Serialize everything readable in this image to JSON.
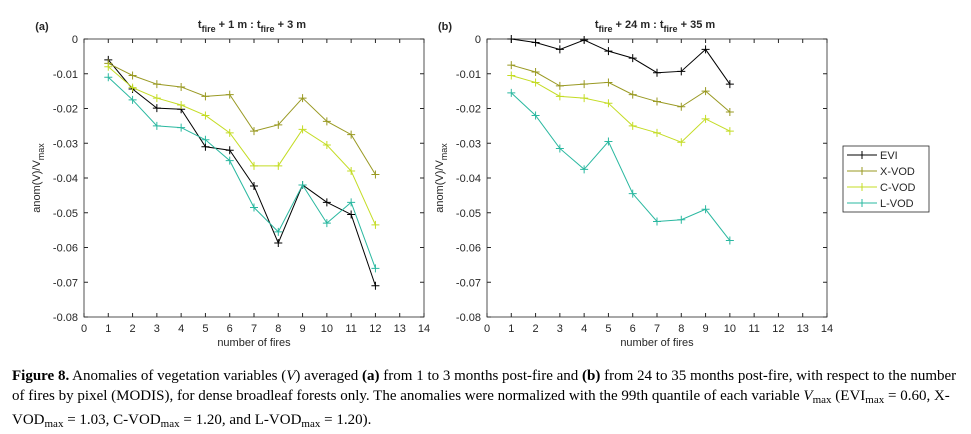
{
  "chart_data": [
    {
      "type": "line",
      "panel_label": "(a)",
      "title": [
        {
          "text": "t"
        },
        {
          "text": "fire",
          "style": "sub"
        },
        {
          "text": " + 1 m : t"
        },
        {
          "text": "fire",
          "style": "sub"
        },
        {
          "text": " + 3 m"
        }
      ],
      "xlabel": "number of fires",
      "ylabel": [
        {
          "text": "anom(V)/V"
        },
        {
          "text": "max",
          "style": "sub"
        }
      ],
      "x": [
        1,
        2,
        3,
        4,
        5,
        6,
        7,
        8,
        9,
        10,
        11,
        12
      ],
      "series": [
        {
          "color": "#000000",
          "values": [
            -0.006,
            -0.0144,
            -0.0199,
            -0.0202,
            -0.031,
            -0.032,
            -0.0423,
            -0.0587,
            -0.042,
            -0.047,
            -0.0505,
            -0.071
          ]
        },
        {
          "color": "#999922",
          "values": [
            -0.007,
            -0.0105,
            -0.013,
            -0.0138,
            -0.0165,
            -0.016,
            -0.0265,
            -0.0247,
            -0.017,
            -0.0237,
            -0.0275,
            -0.039
          ]
        },
        {
          "color": "#c4dc24",
          "values": [
            -0.008,
            -0.014,
            -0.017,
            -0.019,
            -0.022,
            -0.027,
            -0.0365,
            -0.0365,
            -0.026,
            -0.0305,
            -0.038,
            -0.0535
          ]
        },
        {
          "color": "#2ab8a0",
          "values": [
            -0.011,
            -0.0175,
            -0.025,
            -0.0255,
            -0.029,
            -0.035,
            -0.0485,
            -0.0555,
            -0.042,
            -0.053,
            -0.047,
            -0.066
          ]
        }
      ],
      "xlim": [
        0,
        14
      ],
      "xticks": [
        0,
        1,
        2,
        3,
        4,
        5,
        6,
        7,
        8,
        9,
        10,
        11,
        12,
        13,
        14
      ],
      "ylim": [
        -0.08,
        0
      ],
      "yticks": [
        0,
        -0.01,
        -0.02,
        -0.03,
        -0.04,
        -0.05,
        -0.06,
        -0.07,
        -0.08
      ],
      "grid": false
    },
    {
      "type": "line",
      "panel_label": "(b)",
      "title": [
        {
          "text": "t"
        },
        {
          "text": "fire",
          "style": "sub"
        },
        {
          "text": " + 24 m : t"
        },
        {
          "text": "fire",
          "style": "sub"
        },
        {
          "text": " + 35 m"
        }
      ],
      "xlabel": "number of fires",
      "ylabel": [
        {
          "text": "anom(V)/V"
        },
        {
          "text": "max",
          "style": "sub"
        }
      ],
      "x": [
        1,
        2,
        3,
        4,
        5,
        6,
        7,
        8,
        9,
        10
      ],
      "series": [
        {
          "name": "EVI",
          "color": "#000000",
          "values": [
            0,
            -0.001,
            -0.003,
            -0.0003,
            -0.0035,
            -0.0055,
            -0.0097,
            -0.0093,
            -0.003,
            -0.013
          ]
        },
        {
          "name": "X-VOD",
          "color": "#999922",
          "values": [
            -0.0075,
            -0.0095,
            -0.0135,
            -0.013,
            -0.0125,
            -0.016,
            -0.018,
            -0.0195,
            -0.015,
            -0.021
          ]
        },
        {
          "name": "C-VOD",
          "color": "#c4dc24",
          "values": [
            -0.0105,
            -0.0125,
            -0.0165,
            -0.017,
            -0.0185,
            -0.025,
            -0.027,
            -0.0297,
            -0.023,
            -0.0265
          ]
        },
        {
          "name": "L-VOD",
          "color": "#2ab8a0",
          "values": [
            -0.0155,
            -0.022,
            -0.0315,
            -0.0375,
            -0.0295,
            -0.0445,
            -0.0525,
            -0.052,
            -0.049,
            -0.058
          ]
        }
      ],
      "xlim": [
        0,
        14
      ],
      "xticks": [
        0,
        1,
        2,
        3,
        4,
        5,
        6,
        7,
        8,
        9,
        10,
        11,
        12,
        13,
        14
      ],
      "ylim": [
        -0.08,
        0
      ],
      "yticks": [
        0,
        -0.01,
        -0.02,
        -0.03,
        -0.04,
        -0.05,
        -0.06,
        -0.07,
        -0.08
      ],
      "grid": false,
      "legend": "outside-right"
    }
  ],
  "caption": [
    {
      "text": "Figure 8.",
      "style": "bold"
    },
    {
      "text": " Anomalies of vegetation variables ("
    },
    {
      "text": "V",
      "style": "italic"
    },
    {
      "text": ") averaged "
    },
    {
      "text": "(a)",
      "style": "bold"
    },
    {
      "text": " from 1 to 3 months post-fire and "
    },
    {
      "text": "(b)",
      "style": "bold"
    },
    {
      "text": " from 24 to 35 months post-fire, with respect to the number of fires by pixel (MODIS), for dense broadleaf forests only. The anomalies were normalized with the 99th quantile of each variable "
    },
    {
      "text": "V",
      "style": "italic"
    },
    {
      "text": "max",
      "style": "sub"
    },
    {
      "text": " (EVI"
    },
    {
      "text": "max",
      "style": "sub"
    },
    {
      "text": " = 0.60, X-VOD"
    },
    {
      "text": "max",
      "style": "sub"
    },
    {
      "text": " = 1.03, C-VOD"
    },
    {
      "text": "max",
      "style": "sub"
    },
    {
      "text": " = 1.20, and L-VOD"
    },
    {
      "text": "max",
      "style": "sub"
    },
    {
      "text": " = 1.20)."
    }
  ]
}
